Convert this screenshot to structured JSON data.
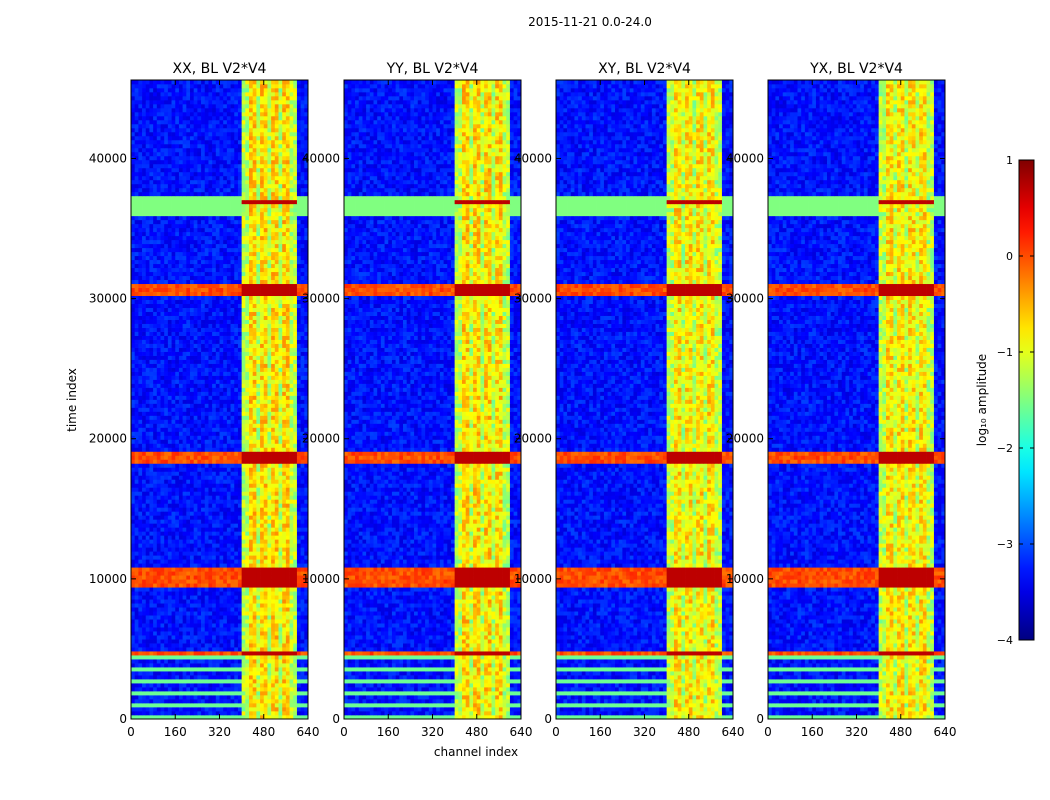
{
  "chart_data": {
    "type": "heatmap",
    "title": "2015-11-21 0.0-24.0",
    "xlabel": "channel index",
    "ylabel": "time index",
    "xlim": [
      0,
      640
    ],
    "ylim": [
      0,
      45600
    ],
    "x_ticks": [
      0,
      160,
      320,
      480,
      640
    ],
    "y_ticks": [
      0,
      10000,
      20000,
      30000,
      40000
    ],
    "panels": [
      {
        "title": "XX, BL V2*V4",
        "band_strength": 1.0
      },
      {
        "title": "YY, BL V2*V4",
        "band_strength": 1.0
      },
      {
        "title": "XY, BL V2*V4",
        "band_strength": 0.9
      },
      {
        "title": "YX, BL V2*V4",
        "band_strength": 0.9
      }
    ],
    "rfi_band_channels": [
      405,
      600
    ],
    "strong_rfi_columns": [
      440,
      480,
      520,
      560
    ],
    "bright_time_rows": [
      4700,
      9600,
      9900,
      10200,
      10500,
      18400,
      18800,
      30600,
      30900,
      36900
    ],
    "quiet_region_level": -3.3,
    "band_region_level": -1.2,
    "colorbar": {
      "label": "log₁₀ amplitude",
      "min": -4,
      "max": 1,
      "ticks": [
        "1",
        "0",
        "−1",
        "−2",
        "−3",
        "−4"
      ],
      "colormap": "jet"
    },
    "colormap_stops": [
      "#00007f",
      "#0000ff",
      "#007fff",
      "#00ffff",
      "#7fff7f",
      "#ffff00",
      "#ff7f00",
      "#ff0000",
      "#7f0000"
    ]
  }
}
